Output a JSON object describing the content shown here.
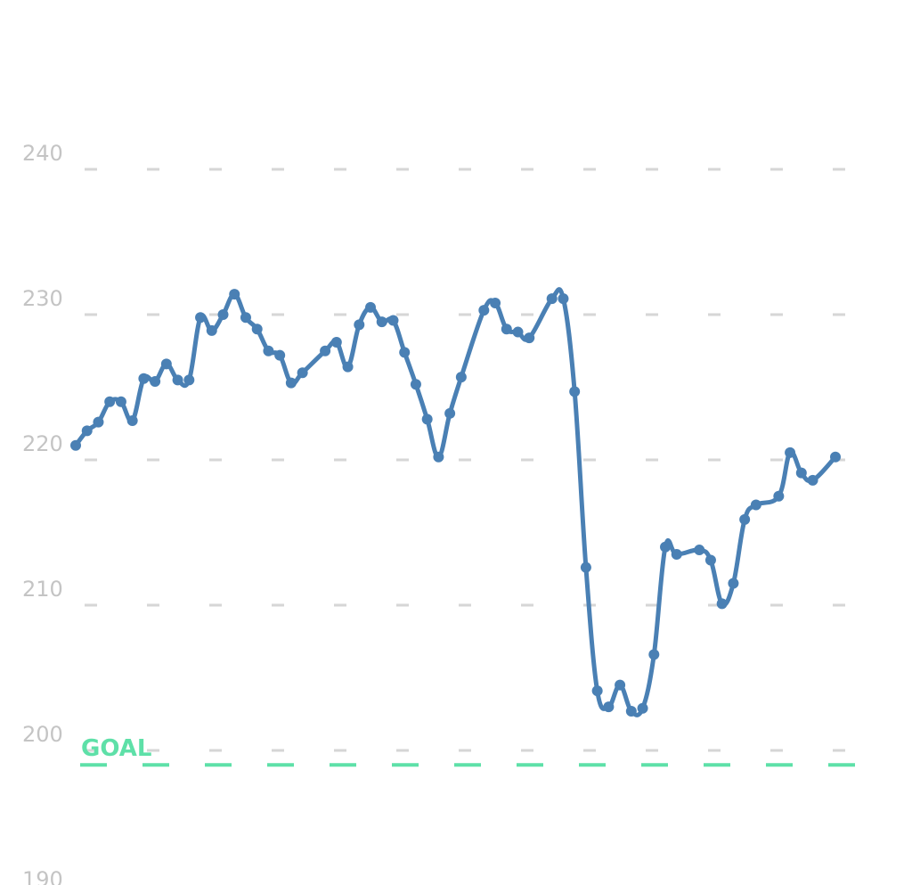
{
  "chart_data": {
    "type": "line",
    "x": [
      0,
      1,
      2,
      3,
      4,
      5,
      6,
      7,
      8,
      9,
      10,
      11,
      12,
      13,
      14,
      15,
      16,
      17,
      18,
      19,
      20,
      22,
      23,
      24,
      25,
      26,
      27,
      28,
      29,
      30,
      31,
      32,
      33,
      34,
      36,
      37,
      38,
      39,
      40,
      42,
      43,
      44,
      45,
      46,
      47,
      48,
      49,
      50,
      51,
      52,
      53,
      55,
      56,
      57,
      58,
      59,
      60,
      62,
      63,
      64,
      65,
      67
    ],
    "series": [
      {
        "color": "#4a80b4",
        "values": [
          221.0,
          222.0,
          222.6,
          224.0,
          224.0,
          222.7,
          225.6,
          225.4,
          226.6,
          225.5,
          225.5,
          229.8,
          228.9,
          230.0,
          231.4,
          229.8,
          229.0,
          227.5,
          227.2,
          225.3,
          226.0,
          227.5,
          228.1,
          226.4,
          229.3,
          230.5,
          229.5,
          229.6,
          227.4,
          225.2,
          222.8,
          220.2,
          223.2,
          225.7,
          230.3,
          230.8,
          229.0,
          228.8,
          228.4,
          231.1,
          231.1,
          224.7,
          212.6,
          204.1,
          203.0,
          204.5,
          202.7,
          202.9,
          206.6,
          214.0,
          213.5,
          213.8,
          213.1,
          210.1,
          211.5,
          215.9,
          216.9,
          217.5,
          220.5,
          219.1,
          218.6,
          220.2
        ]
      }
    ],
    "xlim": [
      0,
      67
    ],
    "ylim": [
      190,
      250
    ],
    "yticks": [
      190,
      200,
      210,
      220,
      230,
      240
    ],
    "grid": true,
    "goal": {
      "label": "GOAL",
      "value": 199,
      "color": "#5ee0a8"
    }
  }
}
